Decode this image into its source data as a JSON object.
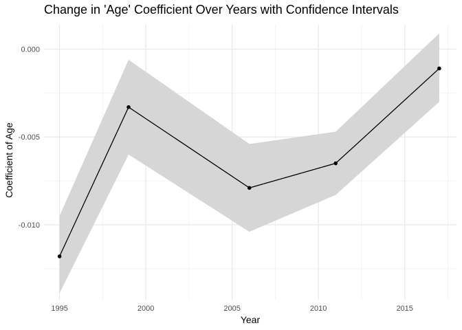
{
  "chart_data": {
    "type": "line",
    "title": "Change in 'Age' Coefficient Over Years with Confidence Intervals",
    "xlabel": "Year",
    "ylabel": "Coefficient of Age",
    "x": [
      1995,
      1999,
      2006,
      2011,
      2017
    ],
    "series": [
      {
        "values": [
          -0.0118,
          -0.0033,
          -0.0079,
          -0.0065,
          -0.0011
        ],
        "lower": [
          -0.0139,
          -0.006,
          -0.0104,
          -0.0083,
          -0.003
        ],
        "upper": [
          -0.0095,
          -0.0006,
          -0.0054,
          -0.0047,
          0.0009
        ],
        "color": "#000000",
        "band_color": "#d6d6d6"
      }
    ],
    "xlim": [
      1994.1,
      2018.0
    ],
    "ylim": [
      -0.01427,
      0.00139
    ],
    "x_ticks": [
      1995,
      2000,
      2005,
      2010,
      2015
    ],
    "x_tick_labels": [
      "1995",
      "2000",
      "2005",
      "2010",
      "2015"
    ],
    "y_ticks": [
      0.0,
      -0.005,
      -0.01
    ],
    "y_tick_labels": [
      "0.000",
      "-0.005",
      "-0.010"
    ],
    "grid": true
  }
}
